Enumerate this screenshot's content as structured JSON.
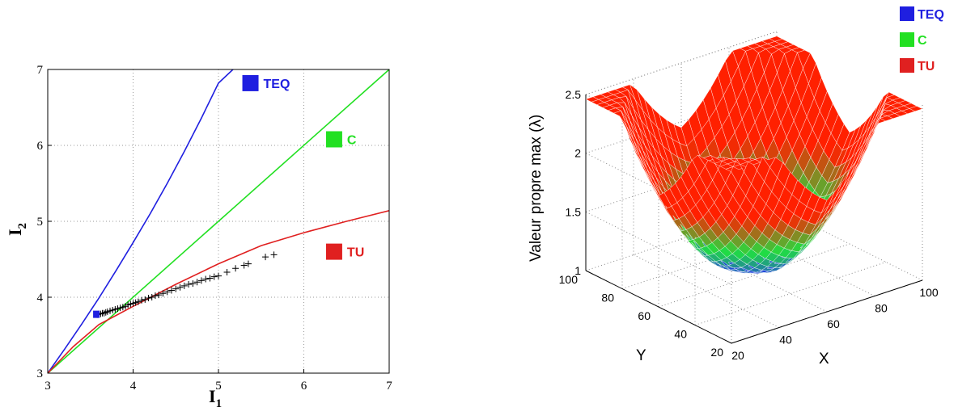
{
  "chart_data": [
    {
      "type": "line",
      "title": "",
      "xlabel": "I",
      "xlabel_sub": "1",
      "ylabel": "I",
      "ylabel_sub": "2",
      "xlim": [
        3,
        7
      ],
      "ylim": [
        3,
        7
      ],
      "xticks": [
        "3",
        "4",
        "5",
        "6",
        "7"
      ],
      "yticks": [
        "3",
        "4",
        "5",
        "6",
        "7"
      ],
      "grid": true,
      "series": [
        {
          "name": "TEQ",
          "color": "#1f1fe0",
          "x": [
            3.0,
            3.2,
            3.4,
            3.6,
            3.8,
            4.0,
            4.2,
            4.4,
            4.6,
            4.8,
            5.0,
            5.17
          ],
          "y": [
            3.0,
            3.32,
            3.65,
            3.99,
            4.35,
            4.72,
            5.1,
            5.5,
            5.92,
            6.36,
            6.82,
            7.0
          ]
        },
        {
          "name": "C",
          "color": "#22e022",
          "x": [
            3.0,
            7.0
          ],
          "y": [
            3.0,
            7.0
          ]
        },
        {
          "name": "TU",
          "color": "#e02020",
          "x": [
            3.0,
            3.3,
            3.6,
            4.0,
            4.5,
            5.0,
            5.5,
            6.0,
            6.5,
            7.0
          ],
          "y": [
            3.0,
            3.35,
            3.64,
            3.88,
            4.17,
            4.44,
            4.68,
            4.85,
            5.0,
            5.14
          ]
        }
      ],
      "markers": {
        "symbol": "+",
        "color": "#000000",
        "x": [
          3.58,
          3.6,
          3.62,
          3.64,
          3.66,
          3.68,
          3.7,
          3.73,
          3.76,
          3.79,
          3.82,
          3.85,
          3.88,
          3.91,
          3.94,
          3.97,
          4.0,
          4.03,
          4.06,
          4.1,
          4.14,
          4.18,
          4.22,
          4.26,
          4.3,
          4.35,
          4.4,
          4.45,
          4.5,
          4.55,
          4.6,
          4.65,
          4.7,
          4.75,
          4.8,
          4.85,
          4.9,
          4.95,
          5.0,
          5.1,
          5.2,
          5.3,
          5.35,
          5.55,
          5.65
        ],
        "y": [
          3.77,
          3.78,
          3.78,
          3.79,
          3.79,
          3.8,
          3.81,
          3.82,
          3.83,
          3.84,
          3.85,
          3.86,
          3.87,
          3.88,
          3.9,
          3.91,
          3.92,
          3.93,
          3.94,
          3.96,
          3.97,
          3.99,
          4.0,
          4.02,
          4.03,
          4.05,
          4.07,
          4.09,
          4.11,
          4.13,
          4.15,
          4.17,
          4.18,
          4.2,
          4.22,
          4.24,
          4.25,
          4.27,
          4.28,
          4.33,
          4.38,
          4.42,
          4.44,
          4.53,
          4.56
        ]
      },
      "annotations": [
        {
          "text": "TEQ",
          "color": "#1f1fe0",
          "x": 5.28,
          "y": 6.82
        },
        {
          "text": "C",
          "color": "#22e022",
          "x": 6.26,
          "y": 6.08
        },
        {
          "text": "TU",
          "color": "#e02020",
          "x": 6.26,
          "y": 4.6
        }
      ]
    },
    {
      "type": "surface",
      "title": "",
      "xlabel": "X",
      "ylabel": "Y",
      "zlabel": "Valeur propre max (λ)",
      "xticks": [
        "20",
        "40",
        "60",
        "80",
        "100"
      ],
      "yticks": [
        "20",
        "40",
        "60",
        "80",
        "100"
      ],
      "zticks": [
        "1",
        "1.5",
        "2",
        "2.5"
      ],
      "xlim": [
        20,
        100
      ],
      "ylim": [
        20,
        100
      ],
      "zlim": [
        1,
        2.5
      ],
      "grid": true,
      "colormap": [
        "#2040e0",
        "#20e040",
        "#ff2000"
      ],
      "legend_position": "top-right",
      "legend": [
        {
          "label": "TEQ",
          "color": "#1f1fe0"
        },
        {
          "label": "C",
          "color": "#22e022"
        },
        {
          "label": "TU",
          "color": "#e02020"
        }
      ]
    }
  ]
}
